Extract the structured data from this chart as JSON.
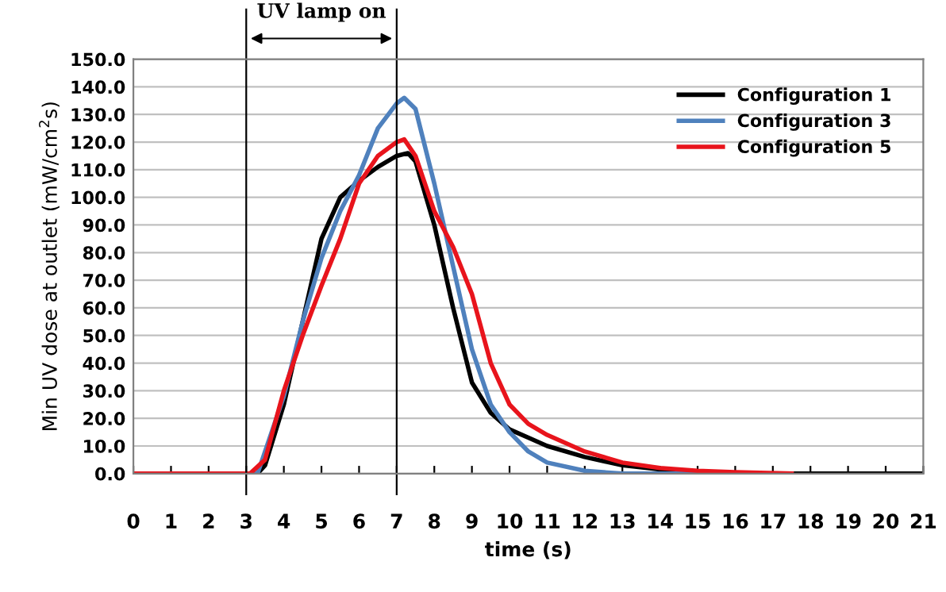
{
  "chart_data": {
    "type": "line",
    "xlabel": "time (s)",
    "ylabel": "Min UV dose at outlet (mW/cm$^{2}$s)",
    "series": [
      {
        "name": "Configuration 1",
        "color": "#000000",
        "x": [
          0,
          3.3,
          3.5,
          4,
          4.5,
          5,
          5.5,
          6,
          6.5,
          7,
          7.3,
          7.5,
          8,
          8.5,
          9,
          9.5,
          10,
          10.5,
          11,
          12,
          13,
          14,
          15,
          16,
          21
        ],
        "values": [
          0,
          0,
          3,
          25,
          55,
          85,
          100,
          106,
          111,
          115,
          116,
          113,
          90,
          60,
          33,
          22,
          16,
          13,
          10,
          6,
          3,
          1.5,
          0.5,
          0,
          0
        ]
      },
      {
        "name": "Configuration 3",
        "color": "#4f81bd",
        "x": [
          0,
          3.3,
          4,
          4.5,
          5,
          5.5,
          6,
          6.5,
          7,
          7.2,
          7.5,
          8,
          8.5,
          9,
          9.5,
          10,
          10.5,
          11,
          12,
          13,
          16
        ],
        "values": [
          0,
          0,
          28,
          55,
          78,
          95,
          108,
          125,
          134,
          136,
          132,
          105,
          75,
          45,
          25,
          15,
          8,
          4,
          1,
          0,
          0
        ]
      },
      {
        "name": "Configuration 5",
        "color": "#e8141c",
        "x": [
          0,
          3.1,
          3.5,
          4,
          4.5,
          5,
          5.5,
          6,
          6.5,
          7,
          7.2,
          7.5,
          8,
          8.5,
          9,
          9.5,
          10,
          10.5,
          11,
          12,
          13,
          14,
          15,
          16,
          17.5
        ],
        "values": [
          0,
          0,
          5,
          30,
          50,
          68,
          85,
          105,
          115,
          120,
          121,
          115,
          95,
          82,
          65,
          40,
          25,
          18,
          14,
          8,
          4,
          2,
          1,
          0.5,
          0
        ]
      }
    ],
    "xlim": [
      0,
      21
    ],
    "xticks": [
      0,
      1,
      2,
      3,
      4,
      5,
      6,
      7,
      8,
      9,
      10,
      11,
      12,
      13,
      14,
      15,
      16,
      17,
      18,
      19,
      20,
      21
    ],
    "ylim": [
      0,
      150
    ],
    "yticks": [
      {
        "value": 0,
        "label": "0.0"
      },
      {
        "value": 10,
        "label": "10.0"
      },
      {
        "value": 20,
        "label": "20.0"
      },
      {
        "value": 30,
        "label": "30.0"
      },
      {
        "value": 40,
        "label": "40.0"
      },
      {
        "value": 50,
        "label": "50.0"
      },
      {
        "value": 60,
        "label": "60.0"
      },
      {
        "value": 70,
        "label": "70.0"
      },
      {
        "value": 80,
        "label": "80.0"
      },
      {
        "value": 90,
        "label": "90.0"
      },
      {
        "value": 100,
        "label": "100.0"
      },
      {
        "value": 110,
        "label": "110.0"
      },
      {
        "value": 120,
        "label": "120.0"
      },
      {
        "value": 130,
        "label": "130.0"
      },
      {
        "value": 140,
        "label": "140.0"
      },
      {
        "value": 150,
        "label": "150.0"
      }
    ],
    "ref_lines": [
      {
        "axis": "x",
        "value": 3,
        "color": "#000000"
      },
      {
        "axis": "x",
        "value": 7,
        "color": "#000000"
      }
    ],
    "annotations": [
      "UV lamp on"
    ],
    "grid": "y",
    "legend": "top right",
    "line_style": "solid",
    "marker": "none"
  }
}
